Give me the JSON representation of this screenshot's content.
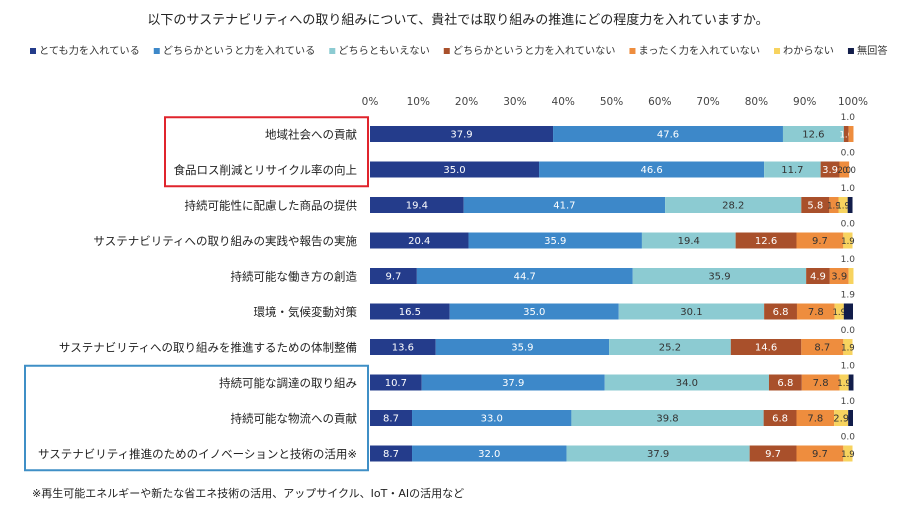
{
  "chart_data": {
    "type": "bar",
    "orientation": "horizontal",
    "stacked": true,
    "title": "以下のサステナビリティへの取り組みについて、貴社では取り組みの推進にどの程度力を入れていますか。",
    "footnote": "※再生可能エネルギーや新たな省エネ技術の活用、アップサイクル、IoT・AIの活用など",
    "xlim": [
      0,
      100
    ],
    "xticks": [
      "0%",
      "10%",
      "20%",
      "30%",
      "40%",
      "50%",
      "60%",
      "70%",
      "80%",
      "90%",
      "100%"
    ],
    "legend_position": "top",
    "categories": [
      "地域社会への貢献",
      "食品ロス削減とリサイクル率の向上",
      "持続可能性に配慮した商品の提供",
      "サステナビリティへの取り組みの実践や報告の実施",
      "持続可能な働き方の創造",
      "環境・気候変動対策",
      "サステナビリティへの取り組みを推進するための体制整備",
      "持続可能な調達の取り組み",
      "持続可能な物流への貢献",
      "サステナビリティ推進のためのイノベーションと技術の活用※"
    ],
    "series": [
      {
        "name": "とても力を入れている",
        "color": "#243c8b",
        "values": [
          37.9,
          35.0,
          19.4,
          20.4,
          9.7,
          16.5,
          13.6,
          10.7,
          8.7,
          8.7
        ]
      },
      {
        "name": "どちらかというと力を入れている",
        "color": "#3d88c9",
        "values": [
          47.6,
          46.6,
          41.7,
          35.9,
          44.7,
          35.0,
          35.9,
          37.9,
          33.0,
          32.0
        ]
      },
      {
        "name": "どちらともいえない",
        "color": "#8ccbd2",
        "values": [
          12.6,
          11.7,
          28.2,
          19.4,
          35.9,
          30.1,
          25.2,
          34.0,
          39.8,
          37.9
        ]
      },
      {
        "name": "どちらかというと力を入れていない",
        "color": "#a9502b",
        "values": [
          1.0,
          3.9,
          5.8,
          12.6,
          4.9,
          6.8,
          14.6,
          6.8,
          6.8,
          9.7
        ]
      },
      {
        "name": "まったく力を入れていない",
        "color": "#ee8d3e",
        "values": [
          1.0,
          2.0,
          1.9,
          9.7,
          3.9,
          7.8,
          8.7,
          7.8,
          7.8,
          9.7
        ]
      },
      {
        "name": "わからない",
        "color": "#f7d35f",
        "values": [
          0.0,
          0.0,
          1.9,
          1.9,
          1.0,
          1.9,
          1.9,
          1.9,
          2.9,
          1.9
        ]
      },
      {
        "name": "無回答",
        "color": "#121d4a",
        "values": [
          0.0,
          0.0,
          1.0,
          0.0,
          0.0,
          1.9,
          0.0,
          1.0,
          1.0,
          0.0
        ]
      }
    ],
    "data_labels": [
      [
        "37.9",
        "47.6",
        "12.6",
        "1.0",
        "",
        "",
        ""
      ],
      [
        "35.0",
        "46.6",
        "11.7",
        "3.9",
        "2.0",
        "0.0",
        ""
      ],
      [
        "19.4",
        "41.7",
        "28.2",
        "5.8",
        "1.9",
        "1.9",
        ""
      ],
      [
        "20.4",
        "35.9",
        "19.4",
        "12.6",
        "9.7",
        "1.9",
        ""
      ],
      [
        "9.7",
        "44.7",
        "35.9",
        "4.9",
        "3.9",
        "",
        ""
      ],
      [
        "16.5",
        "35.0",
        "30.1",
        "6.8",
        "7.8",
        "1.9",
        ""
      ],
      [
        "13.6",
        "35.9",
        "25.2",
        "14.6",
        "8.7",
        "1.9",
        ""
      ],
      [
        "10.7",
        "37.9",
        "34.0",
        "6.8",
        "7.8",
        "1.9",
        ""
      ],
      [
        "8.7",
        "33.0",
        "39.8",
        "6.8",
        "7.8",
        "2.9",
        ""
      ],
      [
        "8.7",
        "32.0",
        "37.9",
        "9.7",
        "9.7",
        "1.9",
        ""
      ]
    ],
    "callouts": [
      [
        "1.0",
        "",
        ""
      ],
      [
        "0.0",
        "",
        ""
      ],
      [
        "1.0",
        "",
        ""
      ],
      [
        "0.0",
        "",
        ""
      ],
      [
        "1.0",
        "",
        ""
      ],
      [
        "1.9",
        "",
        ""
      ],
      [
        "0.0",
        "",
        ""
      ],
      [
        "1.0",
        "",
        ""
      ],
      [
        "1.0",
        "",
        ""
      ],
      [
        "0.0",
        "",
        ""
      ]
    ],
    "highlight_groups": [
      {
        "color": "#e0242c",
        "from": 0,
        "to": 1
      },
      {
        "color": "#3f8fc6",
        "from": 7,
        "to": 9
      }
    ]
  }
}
